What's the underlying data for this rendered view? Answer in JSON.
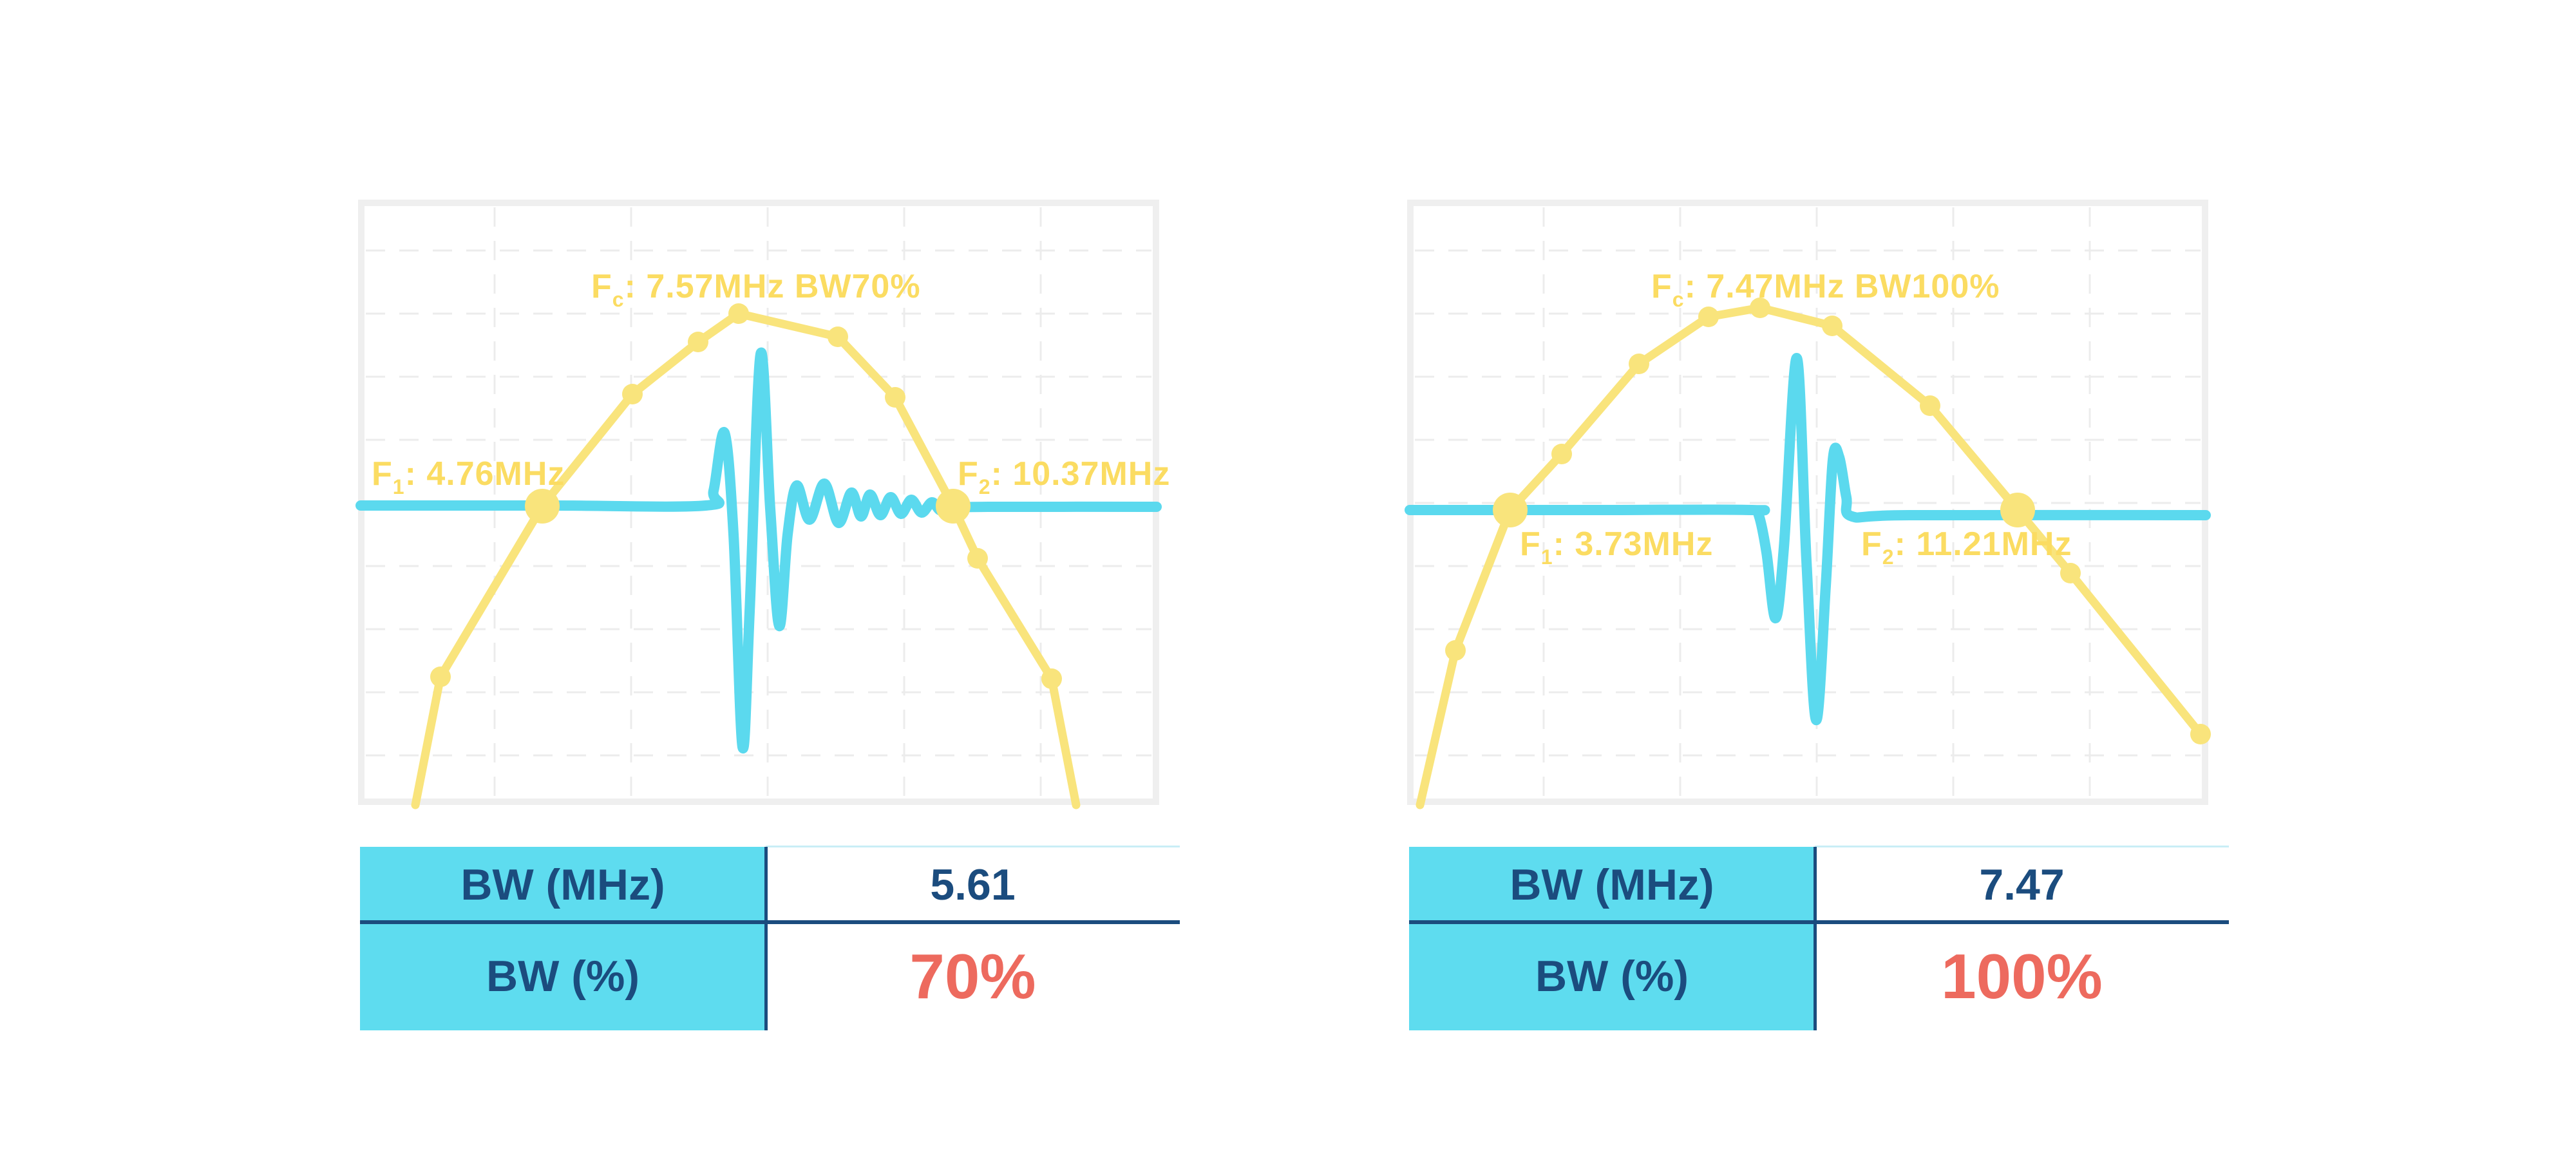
{
  "page": {
    "background": "#FFFFFF"
  },
  "colors": {
    "spectrum_yellow": "#F9E47C",
    "label_yellow": "#FBDC62",
    "pulse_cyan": "#5BD9EE",
    "table_fill_cyan": "#5EDCEF",
    "table_navy": "#1B4C7E",
    "value_red": "#ED6A5E",
    "chart_border": "#EFEFEF",
    "grid_gray": "#ECECEC",
    "table_top_line": "#C9EEF6"
  },
  "panels": [
    {
      "fc_label": {
        "prefix": "F",
        "sub": "c",
        "rest": ": 7.57MHz BW70%"
      },
      "f1_label": {
        "prefix": "F",
        "sub": "1",
        "rest": ": 4.76MHz"
      },
      "f2_label": {
        "prefix": "F",
        "sub": "2",
        "rest": ": 10.37MHz"
      },
      "table": {
        "rows": [
          {
            "label": "BW (MHz)",
            "value": "5.61",
            "highlight": false
          },
          {
            "label": "BW (%)",
            "value": "70%",
            "highlight": true
          }
        ]
      }
    },
    {
      "fc_label": {
        "prefix": "F",
        "sub": "c",
        "rest": ": 7.47MHz BW100%"
      },
      "f1_label": {
        "prefix": "F",
        "sub": "1",
        "rest": ": 3.73MHz"
      },
      "f2_label": {
        "prefix": "F",
        "sub": "2",
        "rest": ": 11.21MHz"
      },
      "table": {
        "rows": [
          {
            "label": "BW (MHz)",
            "value": "7.47",
            "highlight": false
          },
          {
            "label": "BW (%)",
            "value": "100%",
            "highlight": true
          }
        ]
      }
    }
  ],
  "chart_data": [
    {
      "type": "line",
      "title": "Fc: 7.57MHz BW70%",
      "center_frequency_mhz": 7.57,
      "f1_mhz": 4.76,
      "f2_mhz": 10.37,
      "bandwidth_mhz": 5.61,
      "bandwidth_percent": 70,
      "axes": {
        "x": "frequency (unlabeled)",
        "y": "amplitude (unlabeled)",
        "grid": "dashed"
      },
      "series": [
        {
          "name": "frequency-spectrum",
          "style": "polyline",
          "marker": "circle",
          "points": [
            [
              89,
              940
            ],
            [
              128,
              741
            ],
            [
              286,
              476
            ],
            [
              426,
              302
            ],
            [
              528,
              221
            ],
            [
              591,
              177
            ],
            [
              745,
              213
            ],
            [
              834,
              307
            ],
            [
              924,
              476
            ],
            [
              962,
              557
            ],
            [
              1077,
              744
            ],
            [
              1115,
              940
            ]
          ],
          "marker_start": 1,
          "marker_end": 10,
          "big_markers": [
            2,
            8
          ]
        },
        {
          "name": "pulse-echo-waveform",
          "style": "smooth",
          "points": [
            [
              4,
              475
            ],
            [
              300,
              475
            ],
            [
              540,
              475
            ],
            [
              552,
              452
            ],
            [
              569,
              362
            ],
            [
              583,
              520
            ],
            [
              597,
              850
            ],
            [
              608,
              640
            ],
            [
              625,
              240
            ],
            [
              640,
              480
            ],
            [
              654,
              662
            ],
            [
              667,
              520
            ],
            [
              681,
              444
            ],
            [
              701,
              497
            ],
            [
              724,
              441
            ],
            [
              746,
              502
            ],
            [
              766,
              455
            ],
            [
              781,
              492
            ],
            [
              795,
              458
            ],
            [
              811,
              490
            ],
            [
              827,
              462
            ],
            [
              843,
              488
            ],
            [
              859,
              466
            ],
            [
              875,
              486
            ],
            [
              891,
              470
            ],
            [
              905,
              483
            ],
            [
              924,
              478
            ],
            [
              1000,
              477
            ],
            [
              1240,
              477
            ]
          ]
        }
      ]
    },
    {
      "type": "line",
      "title": "Fc: 7.47MHz BW100%",
      "center_frequency_mhz": 7.47,
      "f1_mhz": 3.73,
      "f2_mhz": 11.21,
      "bandwidth_mhz": 7.47,
      "bandwidth_percent": 100,
      "axes": {
        "x": "frequency (unlabeled)",
        "y": "amplitude (unlabeled)",
        "grid": "dashed"
      },
      "series": [
        {
          "name": "frequency-spectrum",
          "style": "polyline",
          "marker": "circle",
          "points": [
            [
              20,
              940
            ],
            [
              75,
              700
            ],
            [
              160,
              482
            ],
            [
              240,
              395
            ],
            [
              360,
              255
            ],
            [
              468,
              182
            ],
            [
              548,
              168
            ],
            [
              660,
              196
            ],
            [
              812,
              320
            ],
            [
              948,
              482
            ],
            [
              1030,
              580
            ],
            [
              1232,
              830
            ]
          ],
          "marker_start": 1,
          "marker_end": 11,
          "big_markers": [
            2,
            9
          ]
        },
        {
          "name": "pulse-echo-waveform",
          "style": "smooth",
          "points": [
            [
              4,
              482
            ],
            [
              300,
              482
            ],
            [
              535,
              482
            ],
            [
              546,
              490
            ],
            [
              558,
              548
            ],
            [
              572,
              650
            ],
            [
              585,
              540
            ],
            [
              605,
              246
            ],
            [
              620,
              560
            ],
            [
              635,
              808
            ],
            [
              650,
              600
            ],
            [
              661,
              404
            ],
            [
              671,
              400
            ],
            [
              682,
              462
            ],
            [
              691,
              492
            ],
            [
              780,
              490
            ],
            [
              1240,
              490
            ]
          ]
        }
      ]
    }
  ]
}
